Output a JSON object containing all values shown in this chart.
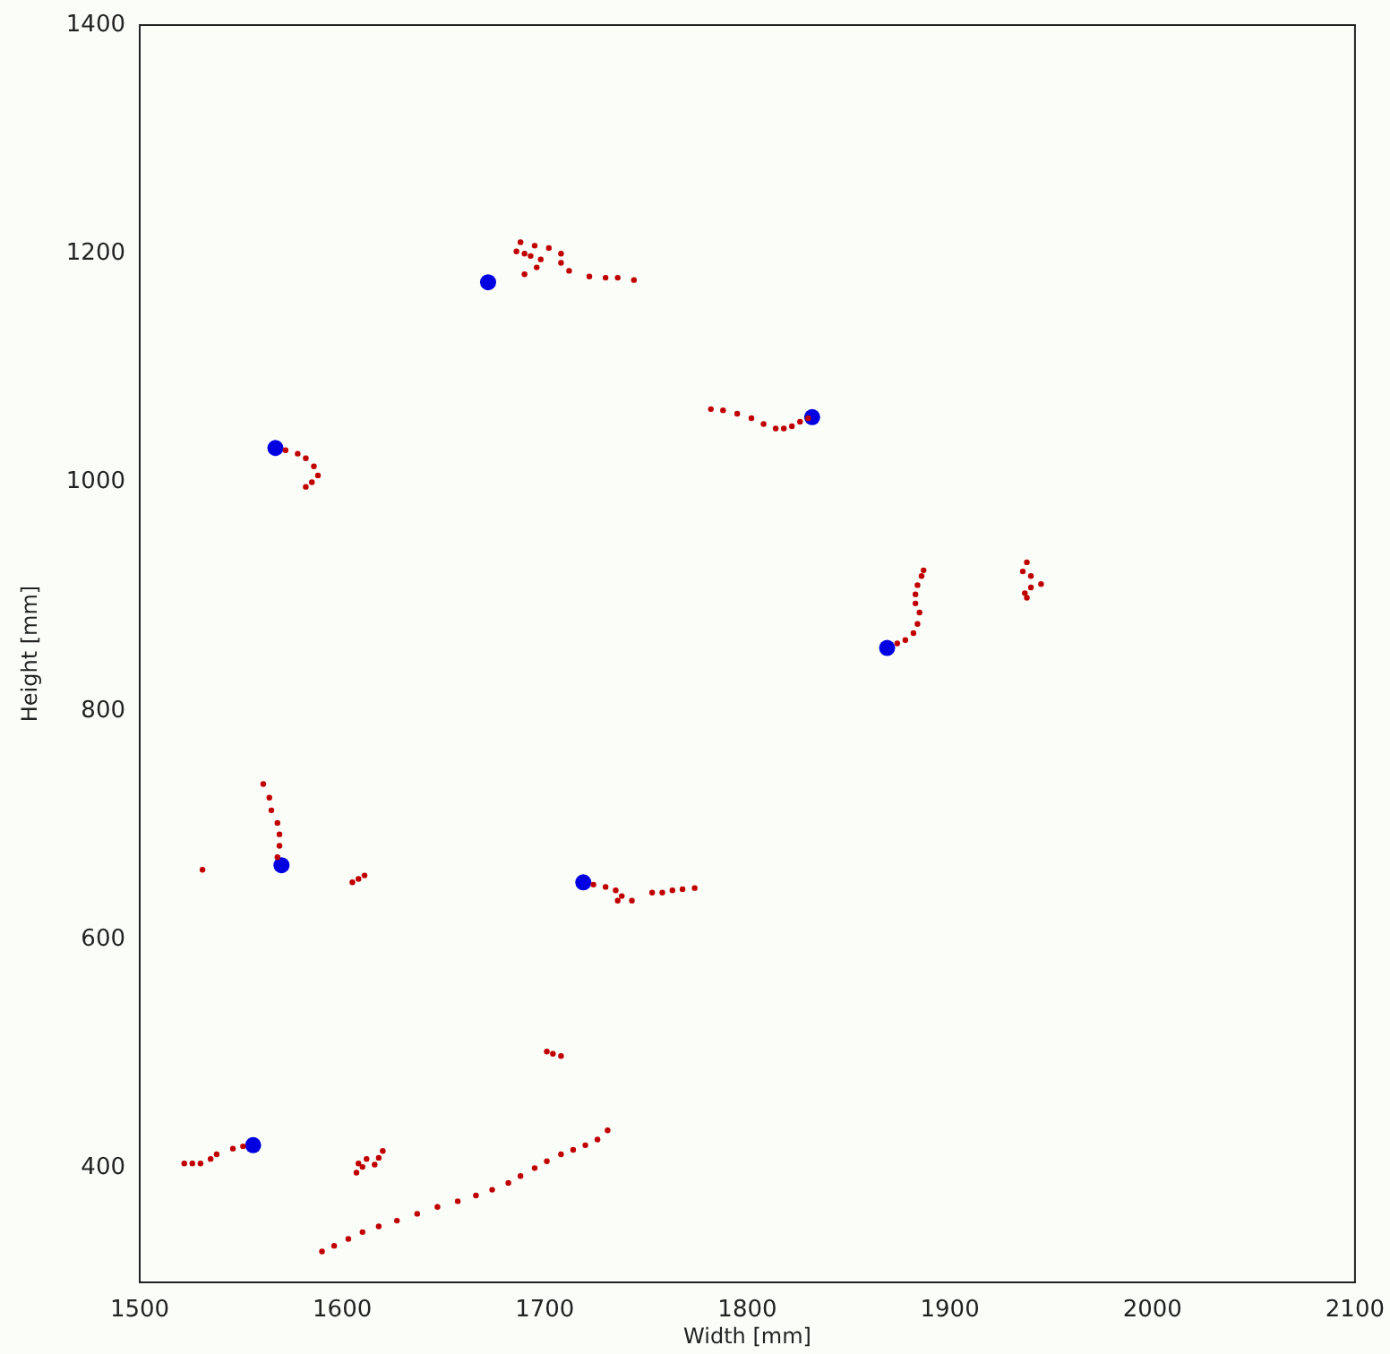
{
  "chart_data": {
    "type": "scatter",
    "xlabel": "Width [mm]",
    "ylabel": "Height [mm]",
    "xlim": [
      1500,
      2100
    ],
    "xticks": [
      1500,
      1600,
      1700,
      1800,
      1900,
      2000,
      2100
    ],
    "ylim": [
      300,
      1400
    ],
    "yticks": [
      400,
      600,
      800,
      1000,
      1200,
      1400
    ],
    "grid": false,
    "legend": false,
    "marker": "circle",
    "series": [
      {
        "color": "#c00000",
        "x": [
          1688,
          1695,
          1702,
          1686,
          1690,
          1693,
          1708,
          1698,
          1708,
          1696,
          1712,
          1690,
          1722,
          1730,
          1736,
          1744,
          1782,
          1788,
          1795,
          1802,
          1808,
          1814,
          1818,
          1822,
          1826,
          1830,
          1572,
          1578,
          1582,
          1586,
          1588,
          1585,
          1582,
          1874,
          1878,
          1882,
          1884,
          1885,
          1883,
          1883,
          1884,
          1886,
          1887,
          1938,
          1936,
          1940,
          1945,
          1940,
          1937,
          1938,
          1561,
          1564,
          1565,
          1568,
          1569,
          1569,
          1568,
          1531,
          1605,
          1608,
          1611,
          1724,
          1730,
          1735,
          1738,
          1736,
          1743,
          1753,
          1758,
          1763,
          1768,
          1774,
          1701,
          1704,
          1708,
          1522,
          1526,
          1530,
          1535,
          1538,
          1546,
          1551,
          1607,
          1608,
          1612,
          1616,
          1618,
          1620,
          1610,
          1590,
          1596,
          1603,
          1610,
          1618,
          1627,
          1637,
          1647,
          1657,
          1666,
          1674,
          1682,
          1688,
          1695,
          1701,
          1708,
          1714,
          1720,
          1726,
          1731
        ],
        "values": [
          1210,
          1207,
          1205,
          1202,
          1200,
          1198,
          1200,
          1195,
          1192,
          1188,
          1185,
          1182,
          1180,
          1179,
          1179,
          1177,
          1064,
          1063,
          1060,
          1056,
          1051,
          1047,
          1047,
          1049,
          1053,
          1056,
          1028,
          1025,
          1021,
          1014,
          1006,
          1000,
          996,
          859,
          862,
          868,
          876,
          886,
          894,
          902,
          910,
          918,
          923,
          930,
          922,
          918,
          911,
          908,
          903,
          899,
          736,
          724,
          713,
          702,
          692,
          682,
          672,
          661,
          650,
          653,
          656,
          648,
          646,
          643,
          638,
          634,
          634,
          641,
          641,
          643,
          644,
          645,
          502,
          500,
          498,
          404,
          404,
          404,
          408,
          412,
          417,
          419,
          396,
          404,
          408,
          403,
          409,
          415,
          401,
          327,
          332,
          338,
          344,
          349,
          354,
          360,
          366,
          371,
          376,
          381,
          387,
          393,
          400,
          406,
          412,
          416,
          420,
          425,
          433
        ]
      },
      {
        "color": "#0000e0",
        "x": [
          1672,
          1567,
          1832,
          1869,
          1570,
          1719,
          1556
        ],
        "values": [
          1175,
          1030,
          1057,
          855,
          665,
          650,
          420
        ]
      }
    ]
  }
}
